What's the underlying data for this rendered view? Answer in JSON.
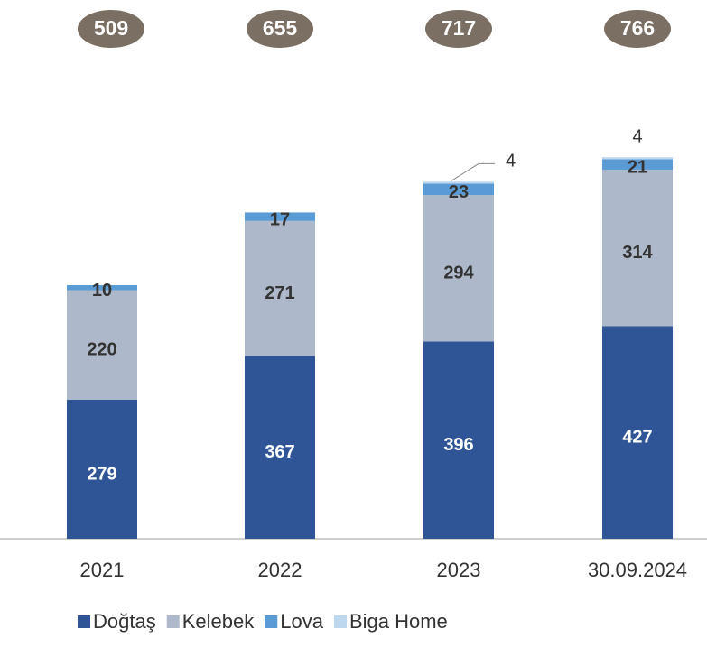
{
  "chart_data": {
    "type": "stacked_bar",
    "categories": [
      "2021",
      "2022",
      "2023",
      "30.09.2024"
    ],
    "totals": [
      509,
      655,
      717,
      766
    ],
    "series": [
      {
        "name": "Doğtaş",
        "color": "#2f5597",
        "values": [
          279,
          367,
          396,
          427
        ]
      },
      {
        "name": "Kelebek",
        "color": "#adb9ca",
        "values": [
          220,
          271,
          294,
          314
        ]
      },
      {
        "name": "Lova",
        "color": "#5b9bd5",
        "values": [
          10,
          17,
          23,
          21
        ]
      },
      {
        "name": "Biga Home",
        "color": "#bdd7ee",
        "values": [
          null,
          null,
          4,
          4
        ]
      }
    ]
  }
}
